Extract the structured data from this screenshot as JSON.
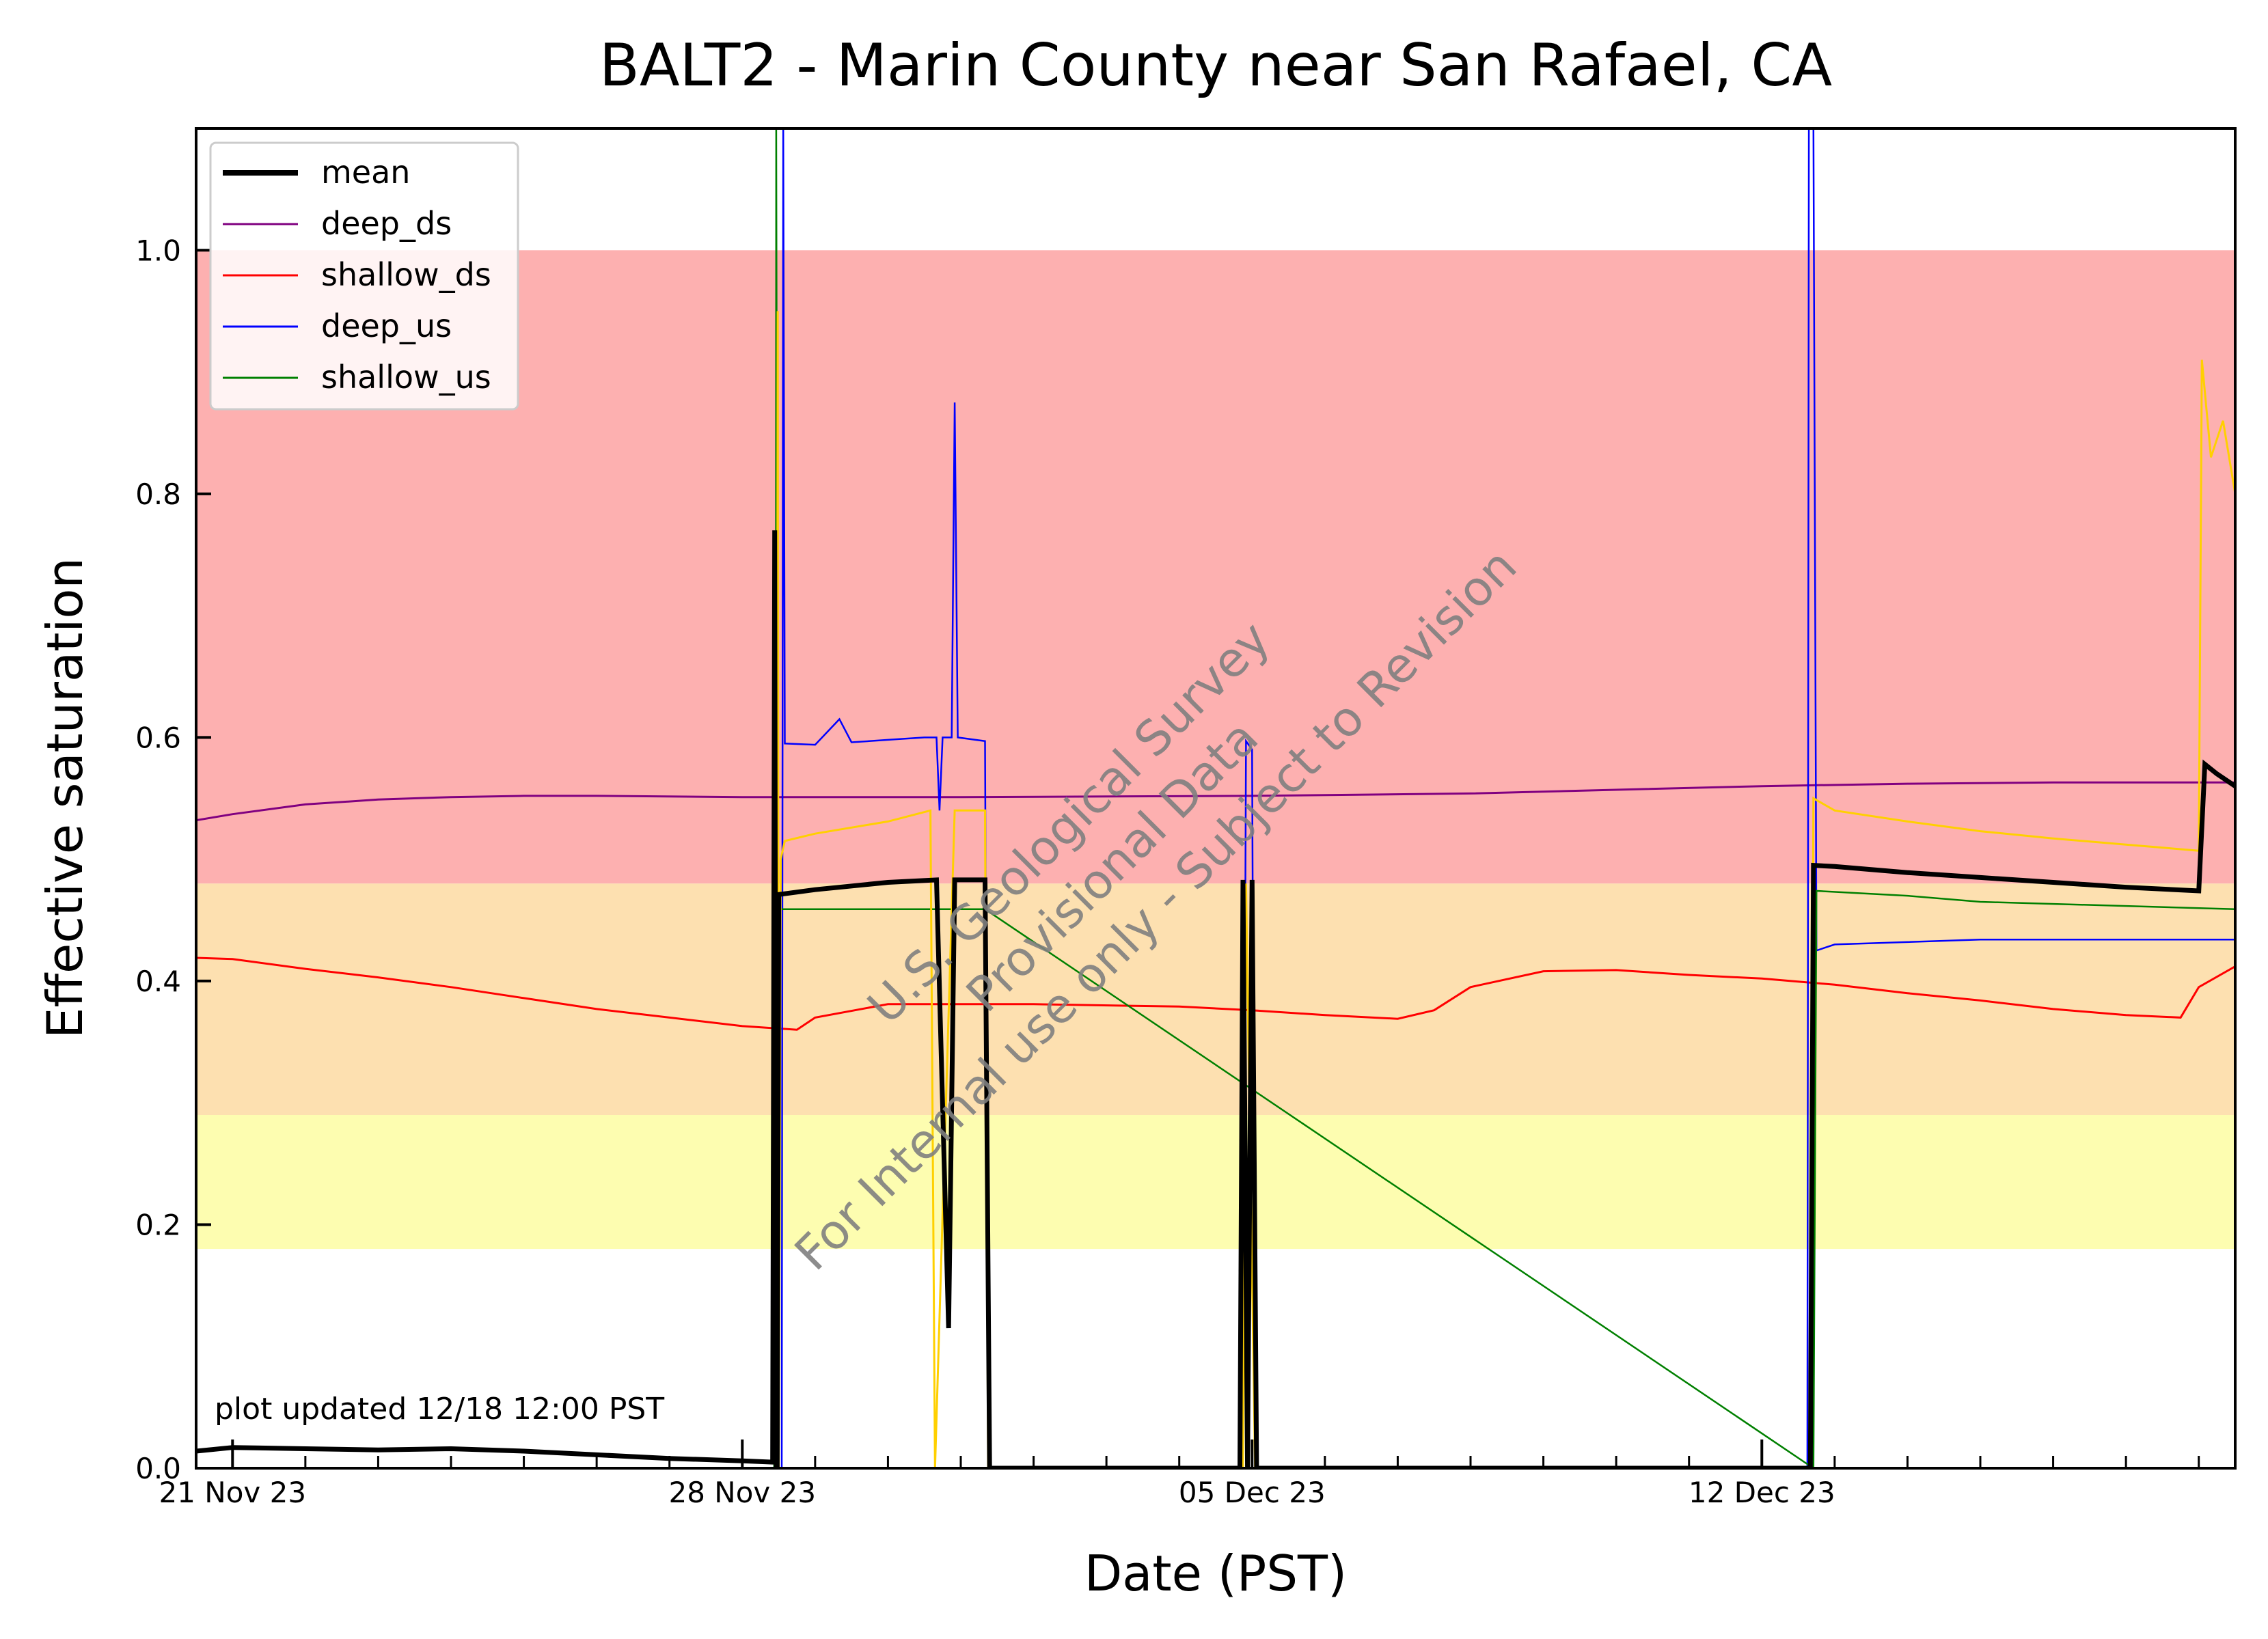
{
  "chart_data": {
    "type": "line",
    "title": "BALT2 - Marin County near San Rafael, CA",
    "xlabel": "Date (PST)",
    "ylabel": "Effective saturation",
    "xlim": [
      "2023-11-20T12:00",
      "2023-12-18T12:00"
    ],
    "ylim": [
      0.0,
      1.1
    ],
    "x_ticks": [
      {
        "date": "2023-11-21",
        "label": "21 Nov 23"
      },
      {
        "date": "2023-11-28",
        "label": "28 Nov 23"
      },
      {
        "date": "2023-12-05",
        "label": "05 Dec 23"
      },
      {
        "date": "2023-12-12",
        "label": "12 Dec 23"
      }
    ],
    "y_ticks": [
      {
        "value": 0.0,
        "label": "0.0"
      },
      {
        "value": 0.2,
        "label": "0.2"
      },
      {
        "value": 0.4,
        "label": "0.4"
      },
      {
        "value": 0.6,
        "label": "0.6"
      },
      {
        "value": 0.8,
        "label": "0.8"
      },
      {
        "value": 1.0,
        "label": "1.0"
      }
    ],
    "bands": [
      {
        "from": 0.48,
        "to": 1.0,
        "color": "#fdb0b0"
      },
      {
        "from": 0.29,
        "to": 0.48,
        "color": "#fde0b0"
      },
      {
        "from": 0.18,
        "to": 0.29,
        "color": "#fdfdb0"
      }
    ],
    "legend_position": "top-left",
    "annotation": "plot updated 12/18 12:00  PST",
    "watermark": [
      "U.S. Geological Survey",
      "Provisional Data",
      "For Internal use only - Subject to Revision"
    ],
    "series": [
      {
        "name": "mean",
        "color": "#000000",
        "width": 7,
        "in_legend": true,
        "points": [
          [
            "2023-11-20T12:00",
            0.014
          ],
          [
            "2023-11-21T00:00",
            0.017
          ],
          [
            "2023-11-22T00:00",
            0.016
          ],
          [
            "2023-11-23T00:00",
            0.015
          ],
          [
            "2023-11-24T00:00",
            0.016
          ],
          [
            "2023-11-25T00:00",
            0.014
          ],
          [
            "2023-11-26T00:00",
            0.011
          ],
          [
            "2023-11-27T00:00",
            0.008
          ],
          [
            "2023-11-28T00:00",
            0.006
          ],
          [
            "2023-11-28T10:00",
            0.005
          ],
          [
            "2023-11-28T10:40",
            0.77
          ],
          [
            "2023-11-28T11:10",
            0.0
          ],
          [
            "2023-11-28T11:30",
            0.0
          ],
          [
            "2023-11-28T12:00",
            0.471
          ],
          [
            "2023-11-29T00:00",
            0.475
          ],
          [
            "2023-11-30T00:00",
            0.481
          ],
          [
            "2023-11-30T16:00",
            0.483
          ],
          [
            "2023-11-30T20:00",
            0.115
          ],
          [
            "2023-11-30T22:00",
            0.483
          ],
          [
            "2023-12-01T08:00",
            0.483
          ],
          [
            "2023-12-01T09:30",
            0.0
          ],
          [
            "2023-12-04T20:00",
            0.0
          ],
          [
            "2023-12-04T21:00",
            0.483
          ],
          [
            "2023-12-04T22:30",
            0.0
          ],
          [
            "2023-12-05T00:00",
            0.483
          ],
          [
            "2023-12-05T01:30",
            0.0
          ],
          [
            "2023-12-12T16:00",
            0.0
          ],
          [
            "2023-12-12T17:00",
            0.495
          ],
          [
            "2023-12-13T00:00",
            0.494
          ],
          [
            "2023-12-14T00:00",
            0.489
          ],
          [
            "2023-12-15T00:00",
            0.485
          ],
          [
            "2023-12-16T00:00",
            0.481
          ],
          [
            "2023-12-17T00:00",
            0.477
          ],
          [
            "2023-12-18T00:00",
            0.474
          ],
          [
            "2023-12-18T02:00",
            0.578
          ],
          [
            "2023-12-18T06:00",
            0.57
          ],
          [
            "2023-12-18T12:00",
            0.56
          ]
        ]
      },
      {
        "name": "deep_ds",
        "color": "#800080",
        "width": 3,
        "in_legend": true,
        "points": [
          [
            "2023-11-20T12:00",
            0.532
          ],
          [
            "2023-11-21T00:00",
            0.537
          ],
          [
            "2023-11-22T00:00",
            0.545
          ],
          [
            "2023-11-23T00:00",
            0.549
          ],
          [
            "2023-11-24T00:00",
            0.551
          ],
          [
            "2023-11-25T00:00",
            0.552
          ],
          [
            "2023-11-26T00:00",
            0.552
          ],
          [
            "2023-11-28T00:00",
            0.551
          ],
          [
            "2023-12-01T00:00",
            0.551
          ],
          [
            "2023-12-05T00:00",
            0.552
          ],
          [
            "2023-12-08T00:00",
            0.554
          ],
          [
            "2023-12-10T00:00",
            0.557
          ],
          [
            "2023-12-12T00:00",
            0.56
          ],
          [
            "2023-12-14T00:00",
            0.562
          ],
          [
            "2023-12-16T00:00",
            0.563
          ],
          [
            "2023-12-18T12:00",
            0.563
          ]
        ]
      },
      {
        "name": "shallow_ds",
        "color": "#ff0000",
        "width": 3,
        "in_legend": true,
        "points": [
          [
            "2023-11-20T12:00",
            0.419
          ],
          [
            "2023-11-21T00:00",
            0.418
          ],
          [
            "2023-11-22T00:00",
            0.41
          ],
          [
            "2023-11-23T00:00",
            0.403
          ],
          [
            "2023-11-24T00:00",
            0.395
          ],
          [
            "2023-11-25T00:00",
            0.386
          ],
          [
            "2023-11-26T00:00",
            0.377
          ],
          [
            "2023-11-27T00:00",
            0.37
          ],
          [
            "2023-11-28T00:00",
            0.363
          ],
          [
            "2023-11-28T18:00",
            0.36
          ],
          [
            "2023-11-29T00:00",
            0.37
          ],
          [
            "2023-11-30T00:00",
            0.381
          ],
          [
            "2023-12-02T00:00",
            0.381
          ],
          [
            "2023-12-04T00:00",
            0.379
          ],
          [
            "2023-12-05T00:00",
            0.376
          ],
          [
            "2023-12-06T00:00",
            0.372
          ],
          [
            "2023-12-07T00:00",
            0.369
          ],
          [
            "2023-12-07T12:00",
            0.376
          ],
          [
            "2023-12-08T00:00",
            0.395
          ],
          [
            "2023-12-09T00:00",
            0.408
          ],
          [
            "2023-12-10T00:00",
            0.409
          ],
          [
            "2023-12-11T00:00",
            0.405
          ],
          [
            "2023-12-12T00:00",
            0.402
          ],
          [
            "2023-12-13T00:00",
            0.397
          ],
          [
            "2023-12-14T00:00",
            0.39
          ],
          [
            "2023-12-15T00:00",
            0.384
          ],
          [
            "2023-12-16T00:00",
            0.377
          ],
          [
            "2023-12-17T00:00",
            0.372
          ],
          [
            "2023-12-17T18:00",
            0.37
          ],
          [
            "2023-12-18T00:00",
            0.395
          ],
          [
            "2023-12-18T12:00",
            0.412
          ]
        ]
      },
      {
        "name": "deep_us",
        "color": "#0000ff",
        "width": 2.5,
        "in_legend": true,
        "points": [
          [
            "2023-11-28T13:00",
            0.0
          ],
          [
            "2023-11-28T13:30",
            1.1
          ],
          [
            "2023-11-28T14:00",
            0.595
          ],
          [
            "2023-11-29T00:00",
            0.594
          ],
          [
            "2023-11-29T08:00",
            0.615
          ],
          [
            "2023-11-29T12:00",
            0.596
          ],
          [
            "2023-11-30T00:00",
            0.598
          ],
          [
            "2023-11-30T12:00",
            0.6
          ],
          [
            "2023-11-30T16:00",
            0.6
          ],
          [
            "2023-11-30T17:00",
            0.54
          ],
          [
            "2023-11-30T18:00",
            0.6
          ],
          [
            "2023-11-30T21:00",
            0.6
          ],
          [
            "2023-11-30T22:00",
            0.875
          ],
          [
            "2023-11-30T23:00",
            0.6
          ],
          [
            "2023-12-01T08:00",
            0.597
          ],
          [
            "2023-12-01T09:00",
            0.0
          ],
          [
            "2023-12-04T21:00",
            0.0
          ],
          [
            "2023-12-04T22:00",
            0.597
          ],
          [
            "2023-12-05T00:00",
            0.59
          ],
          [
            "2023-12-05T01:00",
            0.0
          ],
          [
            "2023-12-12T15:00",
            0.0
          ],
          [
            "2023-12-12T15:30",
            1.1
          ],
          [
            "2023-12-12T17:00",
            1.1
          ],
          [
            "2023-12-12T18:00",
            0.425
          ],
          [
            "2023-12-13T00:00",
            0.43
          ],
          [
            "2023-12-15T00:00",
            0.434
          ],
          [
            "2023-12-18T12:00",
            0.434
          ]
        ]
      },
      {
        "name": "shallow_us",
        "color": "#008000",
        "width": 2.5,
        "in_legend": true,
        "points": [
          [
            "2023-11-28T10:30",
            0.0
          ],
          [
            "2023-11-28T11:00",
            0.3
          ],
          [
            "2023-11-28T11:10",
            1.1
          ],
          [
            "2023-11-28T11:50",
            0.3
          ],
          [
            "2023-11-28T12:10",
            0.459
          ],
          [
            "2023-11-29T00:00",
            0.459
          ],
          [
            "2023-12-01T08:00",
            0.459
          ],
          [
            "2023-12-12T17:00",
            0.0
          ],
          [
            "2023-12-12T18:00",
            0.474
          ],
          [
            "2023-12-14T00:00",
            0.47
          ],
          [
            "2023-12-15T00:00",
            0.465
          ],
          [
            "2023-12-18T12:00",
            0.459
          ]
        ]
      },
      {
        "name": "",
        "color": "#ffd000",
        "width": 3,
        "in_legend": false,
        "points": [
          [
            "2023-11-28T11:20",
            0.0
          ],
          [
            "2023-11-28T11:40",
            0.95
          ],
          [
            "2023-11-28T12:00",
            0.0
          ],
          [
            "2023-11-28T12:40",
            0.5
          ],
          [
            "2023-11-28T14:00",
            0.515
          ],
          [
            "2023-11-29T00:00",
            0.521
          ],
          [
            "2023-11-30T00:00",
            0.531
          ],
          [
            "2023-11-30T14:00",
            0.54
          ],
          [
            "2023-11-30T15:30",
            0.0
          ],
          [
            "2023-11-30T22:00",
            0.54
          ],
          [
            "2023-12-01T08:00",
            0.54
          ],
          [
            "2023-12-01T09:00",
            0.0
          ],
          [
            "2023-12-04T21:00",
            0.0
          ],
          [
            "2023-12-04T22:00",
            0.48
          ],
          [
            "2023-12-05T01:00",
            0.0
          ],
          [
            "2023-12-12T16:00",
            0.0
          ],
          [
            "2023-12-12T17:00",
            0.55
          ],
          [
            "2023-12-13T00:00",
            0.54
          ],
          [
            "2023-12-14T00:00",
            0.531
          ],
          [
            "2023-12-15T00:00",
            0.523
          ],
          [
            "2023-12-16T00:00",
            0.517
          ],
          [
            "2023-12-17T00:00",
            0.512
          ],
          [
            "2023-12-18T00:00",
            0.507
          ],
          [
            "2023-12-18T01:00",
            0.91
          ],
          [
            "2023-12-18T04:00",
            0.83
          ],
          [
            "2023-12-18T08:00",
            0.86
          ],
          [
            "2023-12-18T12:00",
            0.8
          ]
        ]
      }
    ]
  }
}
